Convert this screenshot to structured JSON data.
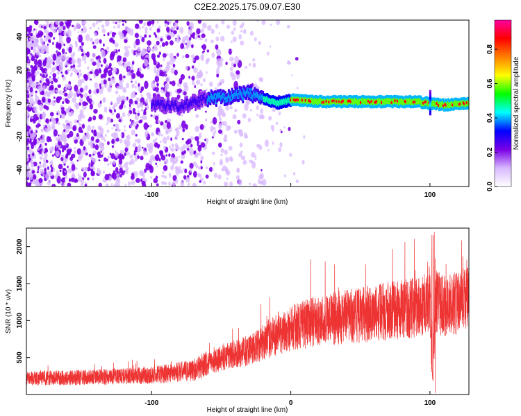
{
  "title": "C2E2.2025.175.09.07.E30",
  "chart_data": [
    {
      "type": "heatmap",
      "panel": "spectrogram",
      "xlabel": "Height of straight line (km)",
      "ylabel": "Frequency (Hz)",
      "xlim": [
        -190,
        128
      ],
      "ylim": [
        -50,
        50
      ],
      "x_ticks": [
        -100,
        0,
        100
      ],
      "x_tick_labels": [
        "-100",
        "",
        "100"
      ],
      "y_ticks": [
        -40,
        -20,
        0,
        20,
        40
      ],
      "y_tick_labels": [
        "-40",
        "-20",
        "0",
        "20",
        "40"
      ],
      "colorbar": {
        "label": "Normalized spectral amplitude",
        "range": [
          0,
          0.97
        ],
        "ticks": [
          0,
          0.2,
          0.4,
          0.6,
          0.8
        ],
        "tick_labels": [
          "0.0",
          "0.2",
          "0.4",
          "0.6",
          "0.8"
        ],
        "colormap": [
          "#ffffff",
          "#d8b8ff",
          "#7a00e6",
          "#0000ff",
          "#00ffff",
          "#00ff00",
          "#ffff00",
          "#ff8000",
          "#ff0000",
          "#ff00a0"
        ]
      },
      "ridge": {
        "description_points_x": [
          -100,
          -80,
          -60,
          -45,
          -30,
          -20,
          -10,
          0,
          20,
          50,
          90,
          100,
          110,
          128
        ],
        "frequency_hz": [
          0,
          -2,
          3,
          4,
          6,
          3,
          0,
          2,
          1,
          1,
          1,
          0,
          -1,
          0
        ]
      },
      "noise_region_x": [
        -190,
        -20
      ]
    },
    {
      "type": "line",
      "panel": "snr",
      "xlabel": "Height of straight line (km)",
      "ylabel": "SNR (10 * v/v)",
      "xlim": [
        -190,
        128
      ],
      "ylim": [
        0,
        2250
      ],
      "x_ticks": [
        -100,
        0,
        100
      ],
      "x_tick_labels": [
        "-100",
        "0",
        "100"
      ],
      "y_ticks": [
        500,
        1000,
        1500,
        2000
      ],
      "y_tick_labels": [
        "500",
        "1000",
        "1500",
        "2000"
      ],
      "color": "#ee3333",
      "series": [
        {
          "x": [
            -190,
            -150,
            -100,
            -70,
            -55,
            -45,
            -30,
            -20,
            -10,
            0,
            20,
            40,
            60,
            80,
            95,
            100,
            102,
            104,
            110,
            128
          ],
          "values": [
            220,
            230,
            260,
            330,
            450,
            520,
            600,
            700,
            820,
            900,
            1000,
            1050,
            1100,
            1150,
            1200,
            1300,
            200,
            1250,
            1200,
            1280
          ]
        }
      ]
    }
  ]
}
